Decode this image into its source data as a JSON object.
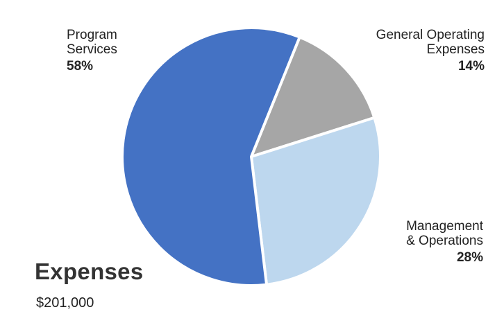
{
  "chart_data": {
    "type": "pie",
    "title": "Expenses",
    "subtitle": "$201,000",
    "slices": [
      {
        "label_lines": [
          "Program",
          "Services"
        ],
        "label": "Program Services",
        "value": 58,
        "value_label": "58%",
        "color": "#4472c4"
      },
      {
        "label_lines": [
          "General Operating",
          "Expenses"
        ],
        "label": "General Operating Expenses",
        "value": 14,
        "value_label": "14%",
        "color": "#a6a6a6"
      },
      {
        "label_lines": [
          "Management",
          "& Operations"
        ],
        "label": "Management & Operations",
        "value": 28,
        "value_label": "28%",
        "color": "#bdd7ee"
      }
    ]
  }
}
